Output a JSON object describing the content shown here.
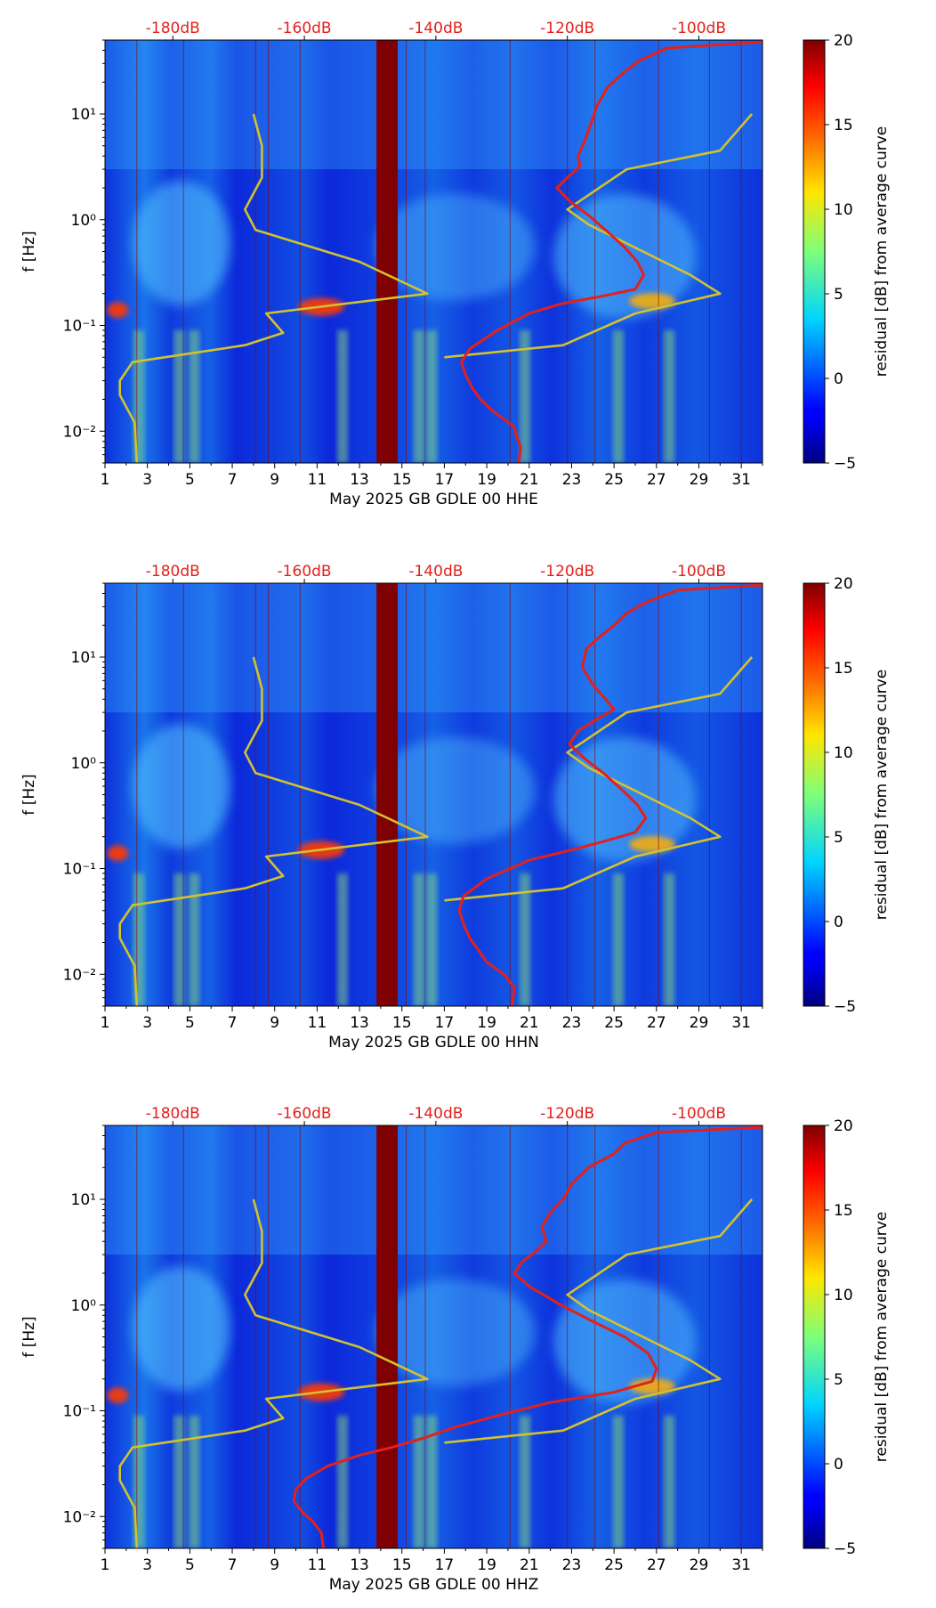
{
  "chart_data": [
    {
      "type": "heatmap",
      "xlabel": "May 2025 GB GDLE 00 HHE",
      "ylabel": "f [Hz]",
      "x_ticks": [
        "1",
        "3",
        "5",
        "7",
        "9",
        "11",
        "13",
        "15",
        "17",
        "19",
        "21",
        "23",
        "25",
        "27",
        "29",
        "31"
      ],
      "xlim": [
        1,
        32
      ],
      "y_scale": "log",
      "ylim": [
        0.005,
        50
      ],
      "y_ticks": [
        "10⁻²",
        "10⁻¹",
        "10⁰",
        "10¹"
      ],
      "top_ticks": [
        "-180dB",
        "-160dB",
        "-140dB",
        "-120dB",
        "-100dB"
      ],
      "colorbar": {
        "label": "residual [dB] from average curve",
        "range": [
          -5,
          20
        ],
        "ticks": [
          "20",
          "15",
          "10",
          "5",
          "0",
          "−5"
        ]
      },
      "series": [
        {
          "color": "#d2c22e",
          "x": [
            8.0,
            8.4,
            8.4,
            7.6,
            8.1,
            13.0,
            16.2,
            8.6,
            9.4,
            7.6,
            2.3,
            1.7,
            1.7,
            2.4,
            2.5
          ],
          "y": [
            10.0,
            5.0,
            2.5,
            1.25,
            0.8,
            0.4,
            0.2,
            0.13,
            0.085,
            0.065,
            0.045,
            0.03,
            0.022,
            0.012,
            0.005
          ]
        },
        {
          "color": "#d2c22e",
          "x": [
            17.0,
            22.6,
            26.0,
            30.0,
            28.6,
            23.8,
            22.8,
            25.6,
            30.0,
            31.5
          ],
          "y": [
            0.05,
            0.065,
            0.13,
            0.2,
            0.3,
            0.9,
            1.25,
            3.0,
            4.5,
            10.0
          ]
        },
        {
          "color": "#e3201b",
          "x": [
            20.5,
            20.6,
            20.4,
            20.3,
            19.8,
            19.2,
            18.7,
            18.3,
            18.0,
            17.8,
            18.2,
            19.5,
            21.0,
            22.5,
            24.5,
            26.0,
            26.4,
            26.1,
            25.5,
            24.6,
            23.8,
            22.9,
            22.3,
            22.8,
            23.4,
            23.3,
            23.6,
            23.9,
            24.2,
            24.7,
            25.5,
            26.2,
            27.5,
            32.0
          ],
          "y": [
            0.005,
            0.007,
            0.009,
            0.011,
            0.013,
            0.016,
            0.02,
            0.026,
            0.034,
            0.045,
            0.06,
            0.09,
            0.13,
            0.16,
            0.19,
            0.22,
            0.3,
            0.4,
            0.55,
            0.8,
            1.1,
            1.5,
            2.0,
            2.5,
            3.2,
            4.0,
            5.5,
            8.0,
            12.0,
            18.0,
            25.0,
            32.0,
            42.0,
            48.0
          ]
        }
      ]
    },
    {
      "type": "heatmap",
      "xlabel": "May 2025 GB GDLE 00 HHN",
      "ylabel": "f [Hz]",
      "x_ticks": [
        "1",
        "3",
        "5",
        "7",
        "9",
        "11",
        "13",
        "15",
        "17",
        "19",
        "21",
        "23",
        "25",
        "27",
        "29",
        "31"
      ],
      "xlim": [
        1,
        32
      ],
      "y_scale": "log",
      "ylim": [
        0.005,
        50
      ],
      "y_ticks": [
        "10⁻²",
        "10⁻¹",
        "10⁰",
        "10¹"
      ],
      "top_ticks": [
        "-180dB",
        "-160dB",
        "-140dB",
        "-120dB",
        "-100dB"
      ],
      "colorbar": {
        "label": "residual [dB] from average curve",
        "range": [
          -5,
          20
        ],
        "ticks": [
          "20",
          "15",
          "10",
          "5",
          "0",
          "−5"
        ]
      },
      "series": [
        {
          "color": "#d2c22e",
          "x": [
            8.0,
            8.4,
            8.4,
            7.6,
            8.1,
            13.0,
            16.2,
            8.6,
            9.4,
            7.6,
            2.3,
            1.7,
            1.7,
            2.4,
            2.5
          ],
          "y": [
            10.0,
            5.0,
            2.5,
            1.25,
            0.8,
            0.4,
            0.2,
            0.13,
            0.085,
            0.065,
            0.045,
            0.03,
            0.022,
            0.012,
            0.005
          ]
        },
        {
          "color": "#d2c22e",
          "x": [
            17.0,
            22.6,
            26.0,
            30.0,
            28.6,
            23.8,
            22.8,
            25.6,
            30.0,
            31.5
          ],
          "y": [
            0.05,
            0.065,
            0.13,
            0.2,
            0.3,
            0.9,
            1.25,
            3.0,
            4.5,
            10.0
          ]
        },
        {
          "color": "#e3201b",
          "x": [
            20.2,
            20.3,
            19.8,
            19.0,
            18.6,
            18.2,
            17.9,
            17.7,
            17.9,
            19.0,
            21.0,
            23.0,
            24.5,
            26.0,
            26.5,
            26.1,
            25.4,
            24.5,
            23.6,
            22.9,
            23.3,
            24.2,
            25.0,
            24.6,
            24.0,
            23.5,
            23.7,
            24.4,
            25.0,
            25.6,
            26.5,
            28.0,
            32.0
          ],
          "y": [
            0.005,
            0.0075,
            0.01,
            0.013,
            0.017,
            0.022,
            0.03,
            0.04,
            0.055,
            0.08,
            0.12,
            0.15,
            0.18,
            0.22,
            0.3,
            0.4,
            0.55,
            0.8,
            1.1,
            1.5,
            2.0,
            2.6,
            3.2,
            4.0,
            5.5,
            8.0,
            12.0,
            16.0,
            20.0,
            26.0,
            33.0,
            43.0,
            48.0
          ]
        }
      ]
    },
    {
      "type": "heatmap",
      "xlabel": "May 2025 GB GDLE 00 HHZ",
      "ylabel": "f [Hz]",
      "x_ticks": [
        "1",
        "3",
        "5",
        "7",
        "9",
        "11",
        "13",
        "15",
        "17",
        "19",
        "21",
        "23",
        "25",
        "27",
        "29",
        "31"
      ],
      "xlim": [
        1,
        32
      ],
      "y_scale": "log",
      "ylim": [
        0.005,
        50
      ],
      "y_ticks": [
        "10⁻²",
        "10⁻¹",
        "10⁰",
        "10¹"
      ],
      "top_ticks": [
        "-180dB",
        "-160dB",
        "-140dB",
        "-120dB",
        "-100dB"
      ],
      "colorbar": {
        "label": "residual [dB] from average curve",
        "range": [
          -5,
          20
        ],
        "ticks": [
          "20",
          "15",
          "10",
          "5",
          "0",
          "−5"
        ]
      },
      "series": [
        {
          "color": "#d2c22e",
          "x": [
            8.0,
            8.4,
            8.4,
            7.6,
            8.1,
            13.0,
            16.2,
            8.6,
            9.4,
            7.6,
            2.3,
            1.7,
            1.7,
            2.4,
            2.5
          ],
          "y": [
            10.0,
            5.0,
            2.5,
            1.25,
            0.8,
            0.4,
            0.2,
            0.13,
            0.085,
            0.065,
            0.045,
            0.03,
            0.022,
            0.012,
            0.005
          ]
        },
        {
          "color": "#d2c22e",
          "x": [
            17.0,
            22.6,
            26.0,
            30.0,
            28.6,
            23.8,
            22.8,
            25.6,
            30.0,
            31.5
          ],
          "y": [
            0.05,
            0.065,
            0.13,
            0.2,
            0.3,
            0.9,
            1.25,
            3.0,
            4.5,
            10.0
          ]
        },
        {
          "color": "#e3201b",
          "x": [
            11.3,
            11.2,
            10.8,
            10.3,
            9.9,
            10.0,
            10.5,
            11.5,
            13.0,
            14.5,
            16.0,
            17.5,
            19.5,
            22.0,
            25.0,
            26.8,
            27.0,
            26.6,
            25.5,
            24.0,
            22.5,
            21.0,
            20.3,
            20.7,
            21.3,
            21.8,
            21.6,
            22.0,
            22.6,
            23.0,
            23.8,
            25.0,
            25.5,
            27.0,
            32.0
          ],
          "y": [
            0.005,
            0.007,
            0.009,
            0.011,
            0.014,
            0.018,
            0.023,
            0.03,
            0.038,
            0.045,
            0.055,
            0.07,
            0.09,
            0.12,
            0.15,
            0.19,
            0.25,
            0.35,
            0.5,
            0.7,
            1.0,
            1.5,
            2.0,
            2.6,
            3.2,
            4.0,
            5.5,
            7.5,
            10.0,
            14.0,
            20.0,
            27.0,
            34.0,
            43.0,
            48.0
          ]
        }
      ]
    }
  ]
}
